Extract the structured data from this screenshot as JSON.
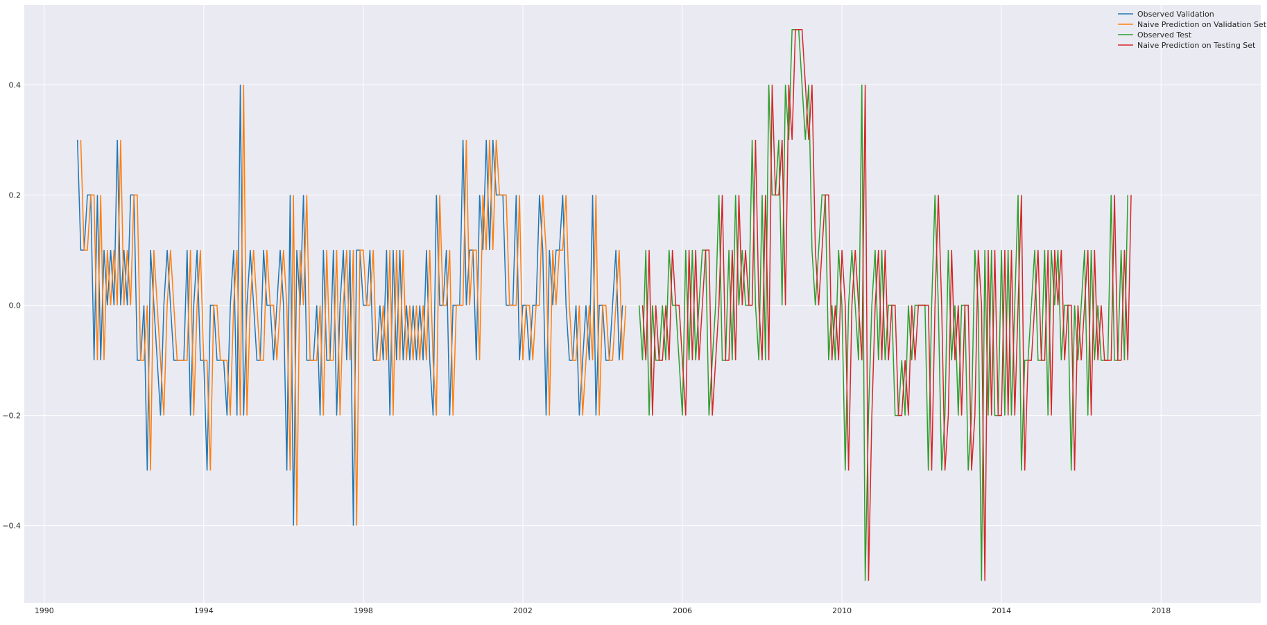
{
  "chart_data": {
    "type": "line",
    "xlim": [
      1989.5,
      2020.5
    ],
    "ylim": [
      -0.54,
      0.545
    ],
    "x_ticks": [
      1990,
      1994,
      1998,
      2002,
      2006,
      2010,
      2014,
      2018
    ],
    "x_tick_labels": [
      "1990",
      "1994",
      "1998",
      "2002",
      "2006",
      "2010",
      "2014",
      "2018"
    ],
    "y_ticks": [
      -0.4,
      -0.2,
      0.0,
      0.2,
      0.4
    ],
    "y_tick_labels": [
      "−0.4",
      "−0.2",
      "0.0",
      "0.2",
      "0.4"
    ],
    "grid": true,
    "legend_position": "top-right",
    "series": [
      {
        "name": "Observed Validation",
        "color": "#1f77b4",
        "x_start": 1990.833,
        "x_step": 0.08333,
        "values": [
          0.3,
          0.1,
          0.1,
          0.2,
          0.2,
          -0.1,
          0.2,
          -0.1,
          0.1,
          0.0,
          0.1,
          0.0,
          0.3,
          0.0,
          0.1,
          0.0,
          0.2,
          0.2,
          -0.1,
          -0.1,
          0.0,
          -0.3,
          0.1,
          0.0,
          -0.1,
          -0.2,
          0.0,
          0.1,
          0.0,
          -0.1,
          -0.1,
          -0.1,
          -0.1,
          0.1,
          -0.2,
          0.0,
          0.1,
          -0.1,
          -0.1,
          -0.3,
          0.0,
          0.0,
          -0.1,
          -0.1,
          -0.1,
          -0.2,
          0.0,
          0.1,
          -0.2,
          0.4,
          -0.2,
          0.0,
          0.1,
          0.0,
          -0.1,
          -0.1,
          0.1,
          0.0,
          0.0,
          -0.1,
          0.0,
          0.1,
          0.0,
          -0.3,
          0.2,
          -0.4,
          0.1,
          0.0,
          0.2,
          -0.1,
          -0.1,
          -0.1,
          0.0,
          -0.2,
          0.1,
          -0.1,
          -0.1,
          0.1,
          -0.2,
          0.0,
          0.1,
          -0.1,
          0.1,
          -0.4,
          0.1,
          0.1,
          0.0,
          0.0,
          0.1,
          -0.1,
          -0.1,
          0.0,
          -0.1,
          0.1,
          -0.2,
          0.1,
          -0.1,
          0.1,
          -0.1,
          0.0,
          -0.1,
          0.0,
          -0.1,
          0.0,
          -0.1,
          0.1,
          -0.1,
          -0.2,
          0.2,
          0.0,
          0.0,
          0.1,
          -0.2,
          0.0,
          0.0,
          0.0,
          0.3,
          0.0,
          0.1,
          0.1,
          -0.1,
          0.2,
          0.1,
          0.3,
          0.1,
          0.3,
          0.2,
          0.2,
          0.2,
          0.0,
          0.0,
          0.0,
          0.2,
          -0.1,
          0.0,
          0.0,
          -0.1,
          0.0,
          0.0,
          0.2,
          0.1,
          -0.2,
          0.1,
          0.0,
          0.1,
          0.1,
          0.2,
          0.0,
          -0.1,
          -0.1,
          0.0,
          -0.2,
          -0.1,
          0.0,
          -0.1,
          0.2,
          -0.2,
          0.0,
          0.0,
          -0.1,
          -0.1,
          0.0,
          0.1,
          -0.1,
          0.0
        ]
      },
      {
        "name": "Naive Prediction on Validation Set",
        "color": "#ff7f0e",
        "x_start": 1990.916,
        "x_step": 0.08333,
        "values": [
          0.3,
          0.1,
          0.1,
          0.2,
          0.2,
          -0.1,
          0.2,
          -0.1,
          0.1,
          0.0,
          0.1,
          0.0,
          0.3,
          0.0,
          0.1,
          0.0,
          0.2,
          0.2,
          -0.1,
          -0.1,
          0.0,
          -0.3,
          0.1,
          0.0,
          -0.1,
          -0.2,
          0.0,
          0.1,
          0.0,
          -0.1,
          -0.1,
          -0.1,
          -0.1,
          0.1,
          -0.2,
          0.0,
          0.1,
          -0.1,
          -0.1,
          -0.3,
          0.0,
          0.0,
          -0.1,
          -0.1,
          -0.1,
          -0.2,
          0.0,
          0.1,
          -0.2,
          0.4,
          -0.2,
          0.0,
          0.1,
          0.0,
          -0.1,
          -0.1,
          0.1,
          0.0,
          0.0,
          -0.1,
          0.0,
          0.1,
          0.0,
          -0.3,
          0.2,
          -0.4,
          0.1,
          0.0,
          0.2,
          -0.1,
          -0.1,
          -0.1,
          0.0,
          -0.2,
          0.1,
          -0.1,
          -0.1,
          0.1,
          -0.2,
          0.0,
          0.1,
          -0.1,
          0.1,
          -0.4,
          0.1,
          0.1,
          0.0,
          0.0,
          0.1,
          -0.1,
          -0.1,
          0.0,
          -0.1,
          0.1,
          -0.2,
          0.1,
          -0.1,
          0.1,
          -0.1,
          0.0,
          -0.1,
          0.0,
          -0.1,
          0.0,
          -0.1,
          0.1,
          -0.1,
          -0.2,
          0.2,
          0.0,
          0.0,
          0.1,
          -0.2,
          0.0,
          0.0,
          0.0,
          0.3,
          0.0,
          0.1,
          0.1,
          -0.1,
          0.2,
          0.1,
          0.3,
          0.1,
          0.3,
          0.2,
          0.2,
          0.2,
          0.0,
          0.0,
          0.0,
          0.2,
          -0.1,
          0.0,
          0.0,
          -0.1,
          0.0,
          0.0,
          0.2,
          0.1,
          -0.2,
          0.1,
          0.0,
          0.1,
          0.1,
          0.2,
          0.0,
          -0.1,
          -0.1,
          0.0,
          -0.2,
          -0.1,
          0.0,
          -0.1,
          0.2,
          -0.2,
          0.0,
          0.0,
          -0.1,
          -0.1,
          0.0,
          0.1,
          -0.1,
          0.0
        ]
      },
      {
        "name": "Observed Test",
        "color": "#2ca02c",
        "x_start": 2004.916,
        "x_step": 0.08333,
        "values": [
          0.0,
          -0.1,
          0.1,
          -0.2,
          0.0,
          -0.1,
          -0.1,
          0.0,
          -0.1,
          0.1,
          0.0,
          0.0,
          -0.1,
          -0.2,
          0.1,
          -0.1,
          0.1,
          -0.1,
          0.0,
          0.1,
          0.1,
          -0.2,
          -0.1,
          0.0,
          0.2,
          -0.1,
          -0.1,
          0.1,
          -0.1,
          0.2,
          0.0,
          0.1,
          0.0,
          0.0,
          0.3,
          0.0,
          -0.1,
          0.2,
          -0.1,
          0.4,
          0.2,
          0.2,
          0.3,
          0.0,
          0.4,
          0.3,
          0.5,
          0.5,
          0.5,
          0.4,
          0.3,
          0.4,
          0.1,
          0.0,
          0.1,
          0.2,
          0.2,
          -0.1,
          0.0,
          -0.1,
          0.1,
          0.0,
          -0.3,
          0.0,
          0.1,
          0.0,
          -0.1,
          0.4,
          -0.5,
          -0.2,
          0.0,
          0.1,
          -0.1,
          0.1,
          -0.1,
          0.0,
          0.0,
          -0.2,
          -0.2,
          -0.1,
          -0.2,
          0.0,
          -0.1,
          0.0,
          0.0,
          0.0,
          0.0,
          -0.3,
          0.0,
          0.2,
          0.0,
          -0.3,
          -0.2,
          0.1,
          -0.1,
          0.0,
          -0.2,
          0.0,
          0.0,
          -0.3,
          -0.2,
          0.1,
          0.0,
          -0.5,
          0.1,
          -0.2,
          0.1,
          -0.2,
          -0.2,
          0.1,
          -0.2,
          0.1,
          -0.2,
          0.0,
          0.2,
          -0.3,
          -0.1,
          -0.1,
          0.0,
          0.1,
          -0.1,
          -0.1,
          0.1,
          -0.2,
          0.1,
          0.0,
          0.1,
          -0.1,
          0.0,
          0.0,
          -0.3,
          0.0,
          -0.1,
          0.0,
          0.1,
          -0.2,
          0.1,
          -0.1,
          0.0,
          -0.1,
          -0.1,
          -0.1,
          0.2,
          -0.1,
          -0.1,
          0.1,
          -0.1,
          0.2
        ]
      },
      {
        "name": "Naive Prediction on Testing Set",
        "color": "#d62728",
        "x_start": 2005.0,
        "x_step": 0.08333,
        "values": [
          0.0,
          -0.1,
          0.1,
          -0.2,
          0.0,
          -0.1,
          -0.1,
          0.0,
          -0.1,
          0.1,
          0.0,
          0.0,
          -0.1,
          -0.2,
          0.1,
          -0.1,
          0.1,
          -0.1,
          0.0,
          0.1,
          0.1,
          -0.2,
          -0.1,
          0.0,
          0.2,
          -0.1,
          -0.1,
          0.1,
          -0.1,
          0.2,
          0.0,
          0.1,
          0.0,
          0.0,
          0.3,
          0.0,
          -0.1,
          0.2,
          -0.1,
          0.4,
          0.2,
          0.2,
          0.3,
          0.0,
          0.4,
          0.3,
          0.5,
          0.5,
          0.5,
          0.4,
          0.3,
          0.4,
          0.1,
          0.0,
          0.1,
          0.2,
          0.2,
          -0.1,
          0.0,
          -0.1,
          0.1,
          0.0,
          -0.3,
          0.0,
          0.1,
          0.0,
          -0.1,
          0.4,
          -0.5,
          -0.2,
          0.0,
          0.1,
          -0.1,
          0.1,
          -0.1,
          0.0,
          0.0,
          -0.2,
          -0.2,
          -0.1,
          -0.2,
          0.0,
          -0.1,
          0.0,
          0.0,
          0.0,
          0.0,
          -0.3,
          0.0,
          0.2,
          0.0,
          -0.3,
          -0.2,
          0.1,
          -0.1,
          0.0,
          -0.2,
          0.0,
          0.0,
          -0.3,
          -0.2,
          0.1,
          0.0,
          -0.5,
          0.1,
          -0.2,
          0.1,
          -0.2,
          -0.2,
          0.1,
          -0.2,
          0.1,
          -0.2,
          0.0,
          0.2,
          -0.3,
          -0.1,
          -0.1,
          0.0,
          0.1,
          -0.1,
          -0.1,
          0.1,
          -0.2,
          0.1,
          0.0,
          0.1,
          -0.1,
          0.0,
          0.0,
          -0.3,
          0.0,
          -0.1,
          0.0,
          0.1,
          -0.2,
          0.1,
          -0.1,
          0.0,
          -0.1,
          -0.1,
          -0.1,
          0.2,
          -0.1,
          -0.1,
          0.1,
          -0.1,
          0.2
        ]
      }
    ],
    "style": {
      "background": "#eaeaf2",
      "grid_color": "#ffffff",
      "text_color": "#262626"
    }
  }
}
